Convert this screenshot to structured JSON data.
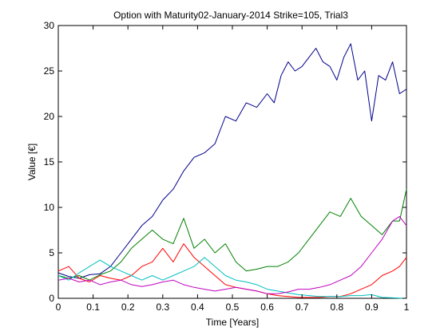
{
  "chart_data": {
    "type": "line",
    "title": "Option with Maturity02-January-2014 Strike=105, Trial3",
    "xlabel": "Time [Years]",
    "ylabel": "Value [€]",
    "xlim": [
      0,
      1
    ],
    "ylim": [
      0,
      30
    ],
    "xticks": [
      "0",
      "0.1",
      "0.2",
      "0.3",
      "0.4",
      "0.5",
      "0.6",
      "0.7",
      "0.8",
      "0.9",
      "1"
    ],
    "yticks": [
      "0",
      "5",
      "10",
      "15",
      "20",
      "25",
      "30"
    ],
    "grid": false,
    "legend": "none",
    "series": [
      {
        "color": "#00008b",
        "x": [
          0,
          0.03,
          0.06,
          0.09,
          0.12,
          0.15,
          0.18,
          0.21,
          0.24,
          0.27,
          0.3,
          0.33,
          0.36,
          0.39,
          0.42,
          0.45,
          0.48,
          0.51,
          0.54,
          0.57,
          0.6,
          0.62,
          0.64,
          0.66,
          0.68,
          0.7,
          0.72,
          0.74,
          0.76,
          0.78,
          0.8,
          0.82,
          0.84,
          0.86,
          0.88,
          0.9,
          0.92,
          0.94,
          0.96,
          0.98,
          1.0
        ],
        "values": [
          2.8,
          2.4,
          2.2,
          2.6,
          2.7,
          3.5,
          5.0,
          6.5,
          8.0,
          9.0,
          10.8,
          12.0,
          14.0,
          15.5,
          16.0,
          17.0,
          20.0,
          19.5,
          21.5,
          21.0,
          22.5,
          21.5,
          24.5,
          26.0,
          25.0,
          25.5,
          26.5,
          27.5,
          26.0,
          25.5,
          24.0,
          26.5,
          28.0,
          24.0,
          25.0,
          19.5,
          24.5,
          24.0,
          26.0,
          22.5,
          23.0
        ]
      },
      {
        "color": "#008000",
        "x": [
          0,
          0.03,
          0.06,
          0.09,
          0.12,
          0.15,
          0.18,
          0.21,
          0.24,
          0.27,
          0.3,
          0.33,
          0.36,
          0.39,
          0.42,
          0.45,
          0.48,
          0.51,
          0.54,
          0.57,
          0.6,
          0.63,
          0.66,
          0.69,
          0.72,
          0.75,
          0.78,
          0.81,
          0.84,
          0.87,
          0.9,
          0.93,
          0.96,
          0.98,
          1.0
        ],
        "values": [
          2.5,
          2.2,
          2.5,
          2.0,
          2.6,
          3.0,
          4.0,
          5.5,
          6.5,
          7.5,
          6.5,
          6.0,
          8.8,
          5.5,
          6.5,
          5.0,
          6.0,
          4.0,
          3.0,
          3.2,
          3.5,
          3.5,
          4.0,
          5.0,
          6.5,
          8.0,
          9.5,
          9.0,
          11.0,
          9.0,
          8.0,
          7.0,
          8.5,
          8.5,
          12.0
        ]
      },
      {
        "color": "#ff0000",
        "x": [
          0,
          0.03,
          0.06,
          0.09,
          0.12,
          0.15,
          0.18,
          0.21,
          0.24,
          0.27,
          0.3,
          0.33,
          0.36,
          0.39,
          0.42,
          0.45,
          0.48,
          0.51,
          0.54,
          0.57,
          0.6,
          0.63,
          0.66,
          0.69,
          0.72,
          0.75,
          0.78,
          0.81,
          0.84,
          0.87,
          0.9,
          0.93,
          0.96,
          0.98,
          1.0
        ],
        "values": [
          3.0,
          3.5,
          2.2,
          1.8,
          2.5,
          2.2,
          2.0,
          2.5,
          3.5,
          4.0,
          5.5,
          4.0,
          6.0,
          4.5,
          3.5,
          2.5,
          1.5,
          1.2,
          1.0,
          0.8,
          0.5,
          0.3,
          0.2,
          0.1,
          0.1,
          0.1,
          0.2,
          0.2,
          0.5,
          1.0,
          1.5,
          2.5,
          3.0,
          3.5,
          4.5
        ]
      },
      {
        "color": "#00bfbf",
        "x": [
          0,
          0.03,
          0.06,
          0.09,
          0.12,
          0.15,
          0.18,
          0.21,
          0.24,
          0.27,
          0.3,
          0.33,
          0.36,
          0.39,
          0.42,
          0.45,
          0.48,
          0.51,
          0.54,
          0.57,
          0.6,
          0.63,
          0.66,
          0.69,
          0.72,
          0.75,
          0.78,
          0.81,
          0.84,
          0.87,
          0.9,
          0.93,
          0.96,
          0.98,
          1.0
        ],
        "values": [
          2.5,
          2.0,
          2.8,
          3.5,
          4.2,
          3.5,
          3.0,
          2.5,
          2.0,
          2.5,
          2.0,
          2.5,
          3.0,
          3.5,
          4.5,
          3.5,
          2.5,
          2.0,
          1.8,
          1.5,
          1.0,
          0.8,
          0.6,
          0.4,
          0.3,
          0.2,
          0.2,
          0.2,
          0.3,
          0.3,
          0.4,
          0.1,
          0.05,
          0.02,
          0.0
        ]
      },
      {
        "color": "#bf00bf",
        "x": [
          0,
          0.03,
          0.06,
          0.09,
          0.12,
          0.15,
          0.18,
          0.21,
          0.24,
          0.27,
          0.3,
          0.33,
          0.36,
          0.39,
          0.42,
          0.45,
          0.48,
          0.51,
          0.54,
          0.57,
          0.6,
          0.63,
          0.66,
          0.69,
          0.72,
          0.75,
          0.78,
          0.81,
          0.84,
          0.87,
          0.9,
          0.93,
          0.96,
          0.98,
          1.0
        ],
        "values": [
          2.0,
          2.2,
          1.8,
          2.0,
          1.5,
          1.8,
          2.0,
          1.5,
          1.3,
          1.5,
          1.8,
          2.0,
          1.5,
          1.2,
          1.0,
          0.8,
          1.0,
          1.2,
          1.0,
          0.8,
          0.5,
          0.5,
          0.7,
          1.0,
          1.0,
          1.2,
          1.5,
          2.0,
          2.5,
          3.5,
          5.0,
          6.5,
          8.5,
          9.0,
          8.0
        ]
      }
    ]
  }
}
